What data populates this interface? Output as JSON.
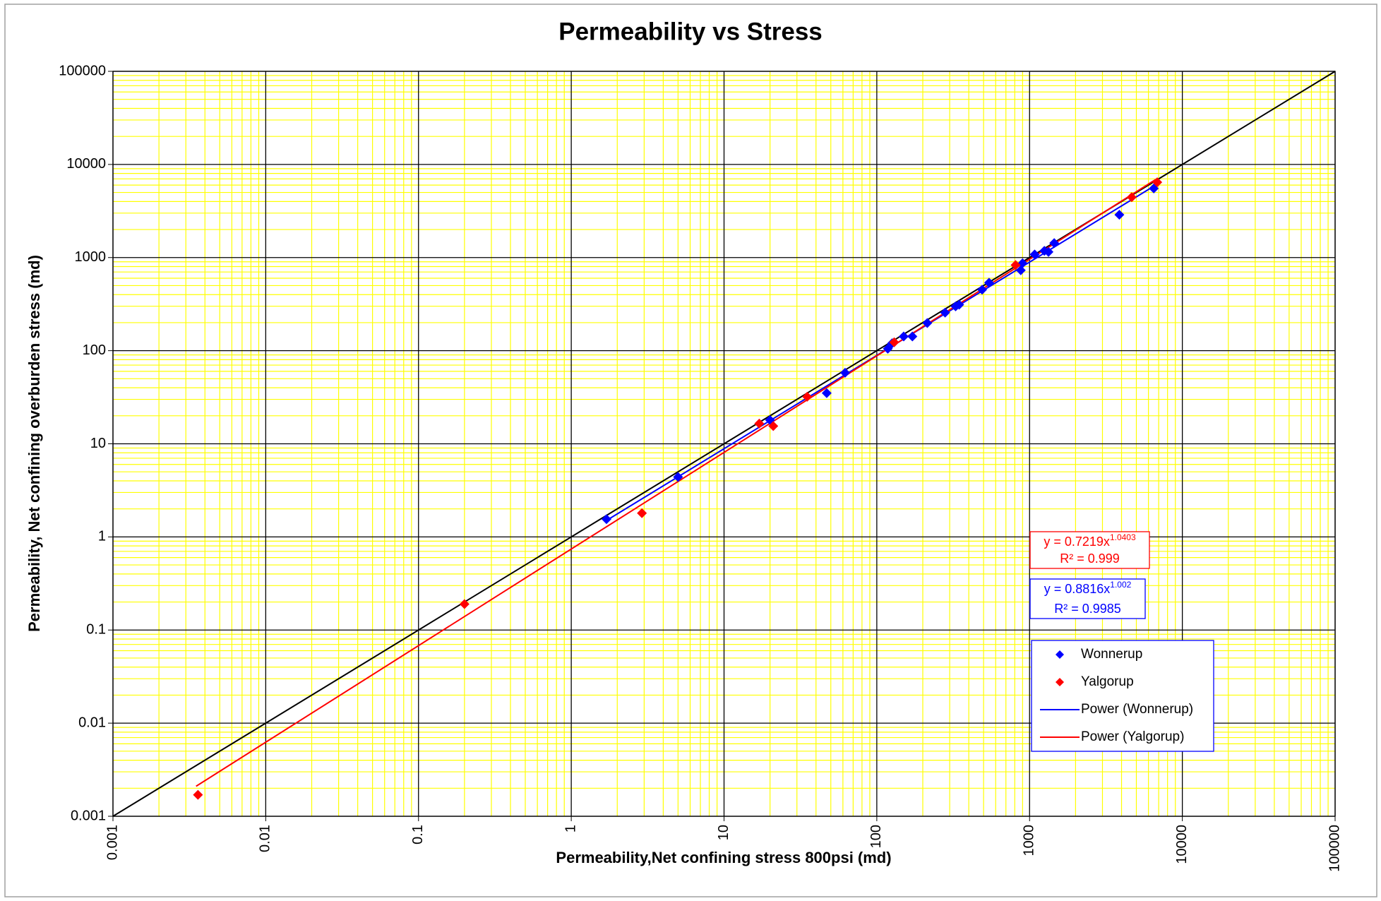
{
  "chart_data": {
    "type": "scatter",
    "title": "Permeability vs Stress",
    "x_label": "Permeability,Net confining stress 800psi (md)",
    "y_label": "Permeability, Net confining overburden stress (md)",
    "xscale": "log",
    "yscale": "log",
    "xlim": [
      0.001,
      100000
    ],
    "ylim": [
      0.001,
      100000
    ],
    "xticks": [
      0.001,
      0.01,
      0.1,
      1,
      10,
      100,
      1000,
      10000,
      100000
    ],
    "yticks": [
      0.001,
      0.01,
      0.1,
      1,
      10,
      100,
      1000,
      10000,
      100000
    ],
    "grid": true,
    "grid_color": "#000000",
    "minor_grid": true,
    "minor_grid_color": "#ffff00",
    "legend_position": "lower right",
    "series": [
      {
        "name": "Wonnerup",
        "mode": "markers",
        "color": "#0000ff",
        "x": [
          1.7,
          5,
          20,
          47,
          62,
          118,
          126,
          150,
          171,
          214,
          280,
          328,
          346,
          489,
          543,
          876,
          900,
          1080,
          1250,
          1330,
          1450,
          3870,
          6500
        ],
        "values": [
          1.55,
          4.4,
          18,
          35,
          58,
          105,
          120,
          142,
          142,
          198,
          256,
          299,
          312,
          452,
          537,
          730,
          870,
          1080,
          1180,
          1150,
          1430,
          2880,
          5520
        ]
      },
      {
        "name": "Yalgorup",
        "mode": "markers",
        "color": "#ff0000",
        "x": [
          0.0036,
          0.2,
          2.9,
          17,
          21,
          35,
          130,
          810,
          4660,
          6850
        ],
        "values": [
          0.0017,
          0.19,
          1.8,
          16.5,
          15.5,
          32,
          123,
          830,
          4450,
          6440
        ]
      },
      {
        "name": "Power (Wonnerup)",
        "mode": "line",
        "color": "#0000ff",
        "x": [
          1.7,
          6500
        ],
        "values": [
          1.5,
          5830
        ]
      },
      {
        "name": "Power (Yalgorup)",
        "mode": "line",
        "color": "#ff0000",
        "x": [
          0.0035,
          6700
        ],
        "values": [
          0.0021,
          6900
        ]
      }
    ],
    "reference_line": {
      "color": "#000000",
      "x": [
        0.001,
        100000
      ],
      "values": [
        0.001,
        100000
      ]
    },
    "annotations": [
      {
        "text": "y = 0.7219x",
        "superscript": "1.0403",
        "r2": "R² = 0.999",
        "color": "#ff0000"
      },
      {
        "text": "y = 0.8816x",
        "superscript": "1.002",
        "r2": "R² = 0.9985",
        "color": "#0000ff"
      }
    ]
  }
}
